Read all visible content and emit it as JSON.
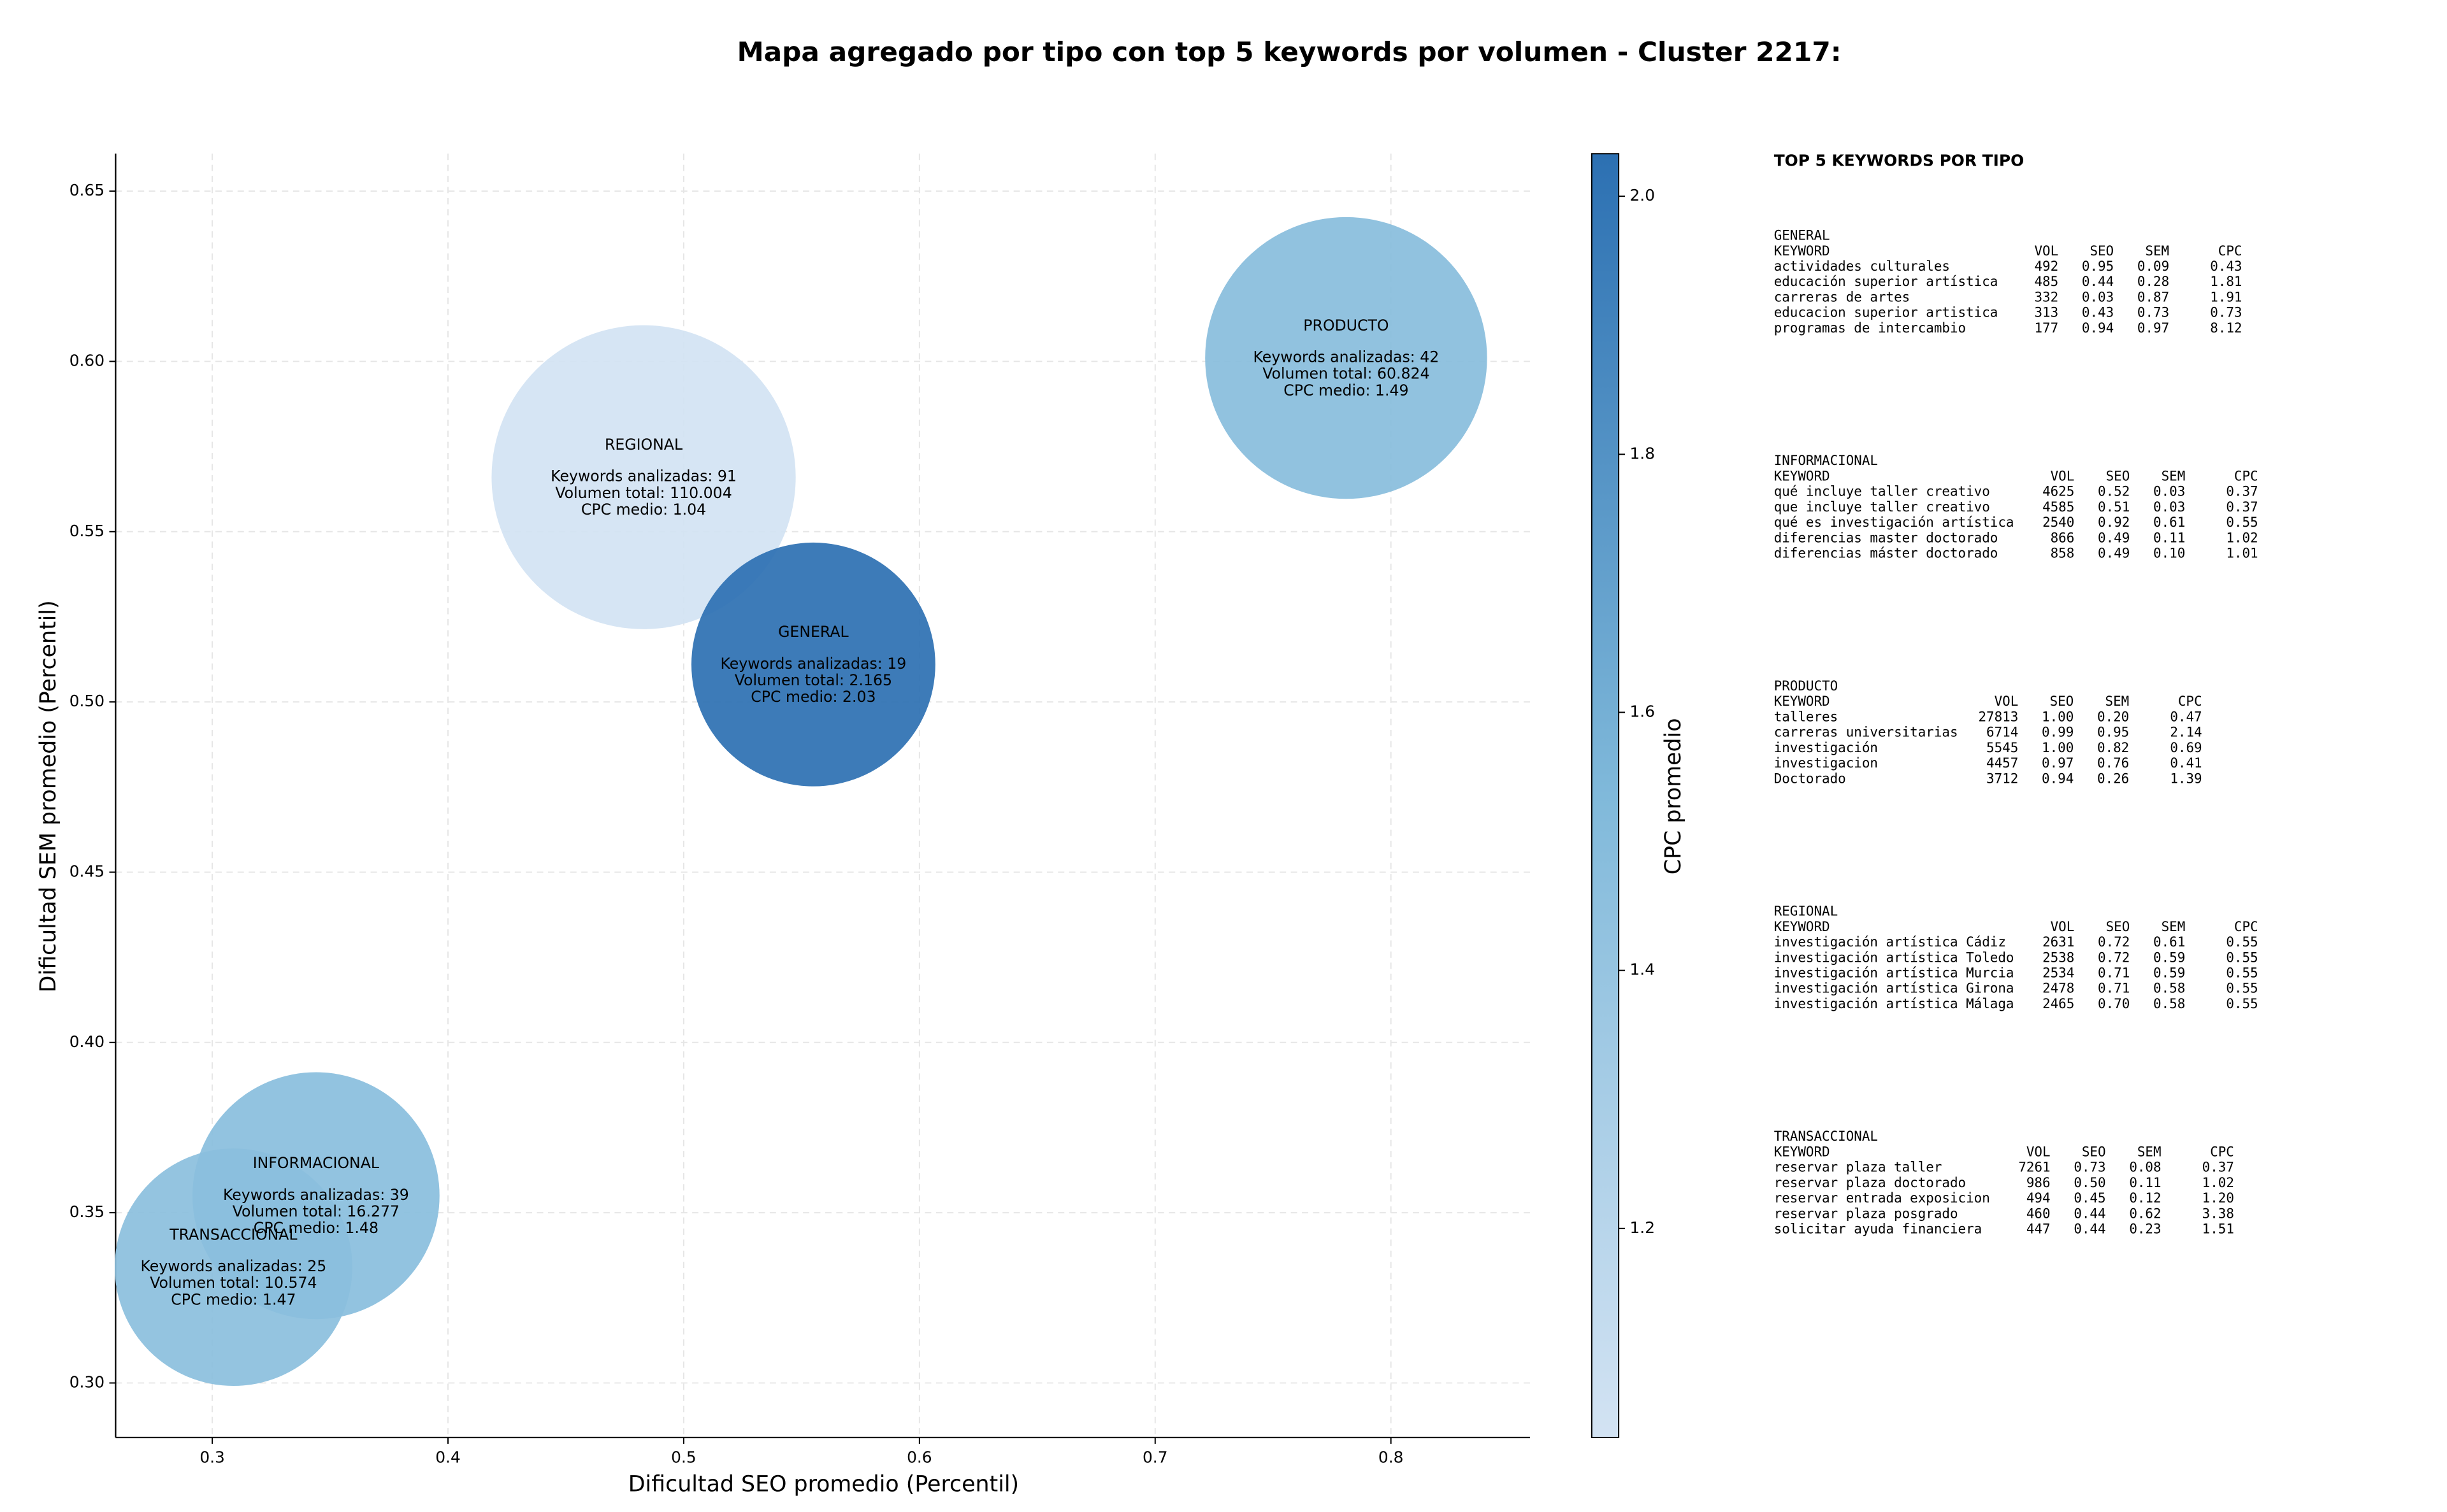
{
  "chart_data": {
    "type": "scatter",
    "title": "Mapa agregado por tipo con top 5 keywords por volumen - Cluster 2217:",
    "x_label": "Dificultad SEO promedio (Percentil)",
    "y_label": "Dificultad SEM promedio (Percentil)",
    "xlim": [
      0.259,
      0.859
    ],
    "ylim": [
      0.284,
      0.661
    ],
    "xticks": [
      0.3,
      0.4,
      0.5,
      0.6,
      0.7,
      0.8
    ],
    "yticks": [
      {
        "value": 0.3,
        "label": "0.30"
      },
      0.35,
      {
        "value": 0.4,
        "label": "0.40"
      },
      0.45,
      {
        "value": 0.5,
        "label": "0.50"
      },
      0.55,
      {
        "value": 0.6,
        "label": "0.60"
      },
      0.65
    ],
    "grid": true,
    "colormap": [
      "#d3e3f3",
      "#80b9da",
      "#2c70b2"
    ],
    "points": [
      {
        "name": "REGIONAL",
        "x": 0.483,
        "y": 0.566,
        "size": 9216,
        "cpc": 1.04,
        "texts": [
          "Keywords analizadas: 91",
          "Volumen total: 110.004",
          "CPC medio: 1.04"
        ]
      },
      {
        "name": "PRODUCTO",
        "x": 0.781,
        "y": 0.601,
        "size": 7921,
        "cpc": 1.49,
        "texts": [
          "Keywords analizadas: 42",
          "Volumen total: 60.824",
          "CPC medio: 1.49"
        ]
      },
      {
        "name": "GENERAL",
        "x": 0.555,
        "y": 0.511,
        "size": 5929,
        "cpc": 2.03,
        "texts": [
          "Keywords analizadas: 19",
          "Volumen total: 2.165",
          "CPC medio: 2.03"
        ]
      },
      {
        "name": "INFORMACIONAL",
        "x": 0.344,
        "y": 0.355,
        "size": 6084,
        "cpc": 1.48,
        "texts": [
          "Keywords analizadas: 39",
          "Volumen total: 16.277",
          "CPC medio: 1.48"
        ]
      },
      {
        "name": "TRANSACCIONAL",
        "x": 0.309,
        "y": 0.334,
        "size": 5625,
        "cpc": 1.47,
        "texts": [
          "Keywords analizadas: 25",
          "Volumen total: 10.574",
          "CPC medio: 1.47"
        ]
      }
    ],
    "colorbar": {
      "label": "CPC promedio",
      "lim": [
        1.038,
        2.033
      ],
      "ticks": [
        1.2,
        1.4,
        1.6,
        1.8,
        {
          "value": 2.0,
          "label": "2.0"
        }
      ]
    }
  },
  "side_panel": {
    "title": "TOP 5 KEYWORDS POR TIPO",
    "sections": [
      {
        "title": "GENERAL",
        "header": [
          "KEYWORD",
          "VOL",
          "SEO",
          "SEM",
          "CPC"
        ],
        "rows": [
          [
            "actividades culturales",
            "492",
            "0.95",
            "0.09",
            "0.43"
          ],
          [
            "educación superior artística",
            "485",
            "0.44",
            "0.28",
            "1.81"
          ],
          [
            "carreras de artes",
            "332",
            "0.03",
            "0.87",
            "1.91"
          ],
          [
            "educacion superior artistica",
            "313",
            "0.43",
            "0.73",
            "0.73"
          ],
          [
            "programas de intercambio",
            "177",
            "0.94",
            "0.97",
            "8.12"
          ]
        ]
      },
      {
        "title": "INFORMACIONAL",
        "header": [
          "KEYWORD",
          "VOL",
          "SEO",
          "SEM",
          "CPC"
        ],
        "rows": [
          [
            "qué incluye taller creativo",
            "4625",
            "0.52",
            "0.03",
            "0.37"
          ],
          [
            "que incluye taller creativo",
            "4585",
            "0.51",
            "0.03",
            "0.37"
          ],
          [
            "qué es investigación artística",
            "2540",
            "0.92",
            "0.61",
            "0.55"
          ],
          [
            "diferencias master doctorado",
            "866",
            "0.49",
            "0.11",
            "1.02"
          ],
          [
            "diferencias máster doctorado",
            "858",
            "0.49",
            "0.10",
            "1.01"
          ]
        ]
      },
      {
        "title": "PRODUCTO",
        "header": [
          "KEYWORD",
          "VOL",
          "SEO",
          "SEM",
          "CPC"
        ],
        "rows": [
          [
            "talleres",
            "27813",
            "1.00",
            "0.20",
            "0.47"
          ],
          [
            "carreras universitarias",
            "6714",
            "0.99",
            "0.95",
            "2.14"
          ],
          [
            "investigación",
            "5545",
            "1.00",
            "0.82",
            "0.69"
          ],
          [
            "investigacion",
            "4457",
            "0.97",
            "0.76",
            "0.41"
          ],
          [
            "Doctorado",
            "3712",
            "0.94",
            "0.26",
            "1.39"
          ]
        ]
      },
      {
        "title": "REGIONAL",
        "header": [
          "KEYWORD",
          "VOL",
          "SEO",
          "SEM",
          "CPC"
        ],
        "rows": [
          [
            "investigación artística Cádiz",
            "2631",
            "0.72",
            "0.61",
            "0.55"
          ],
          [
            "investigación artística Toledo",
            "2538",
            "0.72",
            "0.59",
            "0.55"
          ],
          [
            "investigación artística Murcia",
            "2534",
            "0.71",
            "0.59",
            "0.55"
          ],
          [
            "investigación artística Girona",
            "2478",
            "0.71",
            "0.58",
            "0.55"
          ],
          [
            "investigación artística Málaga",
            "2465",
            "0.70",
            "0.58",
            "0.55"
          ]
        ]
      },
      {
        "title": "TRANSACCIONAL",
        "header": [
          "KEYWORD",
          "VOL",
          "SEO",
          "SEM",
          "CPC"
        ],
        "rows": [
          [
            "reservar plaza taller",
            "7261",
            "0.73",
            "0.08",
            "0.37"
          ],
          [
            "reservar plaza doctorado",
            "986",
            "0.50",
            "0.11",
            "1.02"
          ],
          [
            "reservar entrada exposicion",
            "494",
            "0.45",
            "0.12",
            "1.20"
          ],
          [
            "reservar plaza posgrado",
            "460",
            "0.44",
            "0.62",
            "3.38"
          ],
          [
            "solicitar ayuda financiera",
            "447",
            "0.44",
            "0.23",
            "1.51"
          ]
        ]
      }
    ]
  }
}
